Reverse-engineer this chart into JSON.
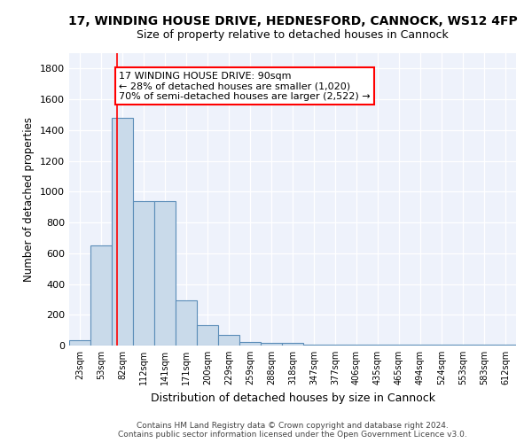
{
  "title": "17, WINDING HOUSE DRIVE, HEDNESFORD, CANNOCK, WS12 4FP",
  "subtitle": "Size of property relative to detached houses in Cannock",
  "xlabel": "Distribution of detached houses by size in Cannock",
  "ylabel": "Number of detached properties",
  "bin_labels": [
    "23sqm",
    "53sqm",
    "82sqm",
    "112sqm",
    "141sqm",
    "171sqm",
    "200sqm",
    "229sqm",
    "259sqm",
    "288sqm",
    "318sqm",
    "347sqm",
    "377sqm",
    "406sqm",
    "435sqm",
    "465sqm",
    "494sqm",
    "524sqm",
    "553sqm",
    "583sqm",
    "612sqm"
  ],
  "bar_heights": [
    35,
    650,
    1480,
    940,
    940,
    295,
    130,
    70,
    25,
    20,
    20,
    5,
    5,
    5,
    5,
    5,
    5,
    5,
    5,
    5,
    5
  ],
  "bar_color": "#c9daea",
  "bar_edge_color": "#5b8db8",
  "annotation_text": "17 WINDING HOUSE DRIVE: 90sqm\n← 28% of detached houses are smaller (1,020)\n70% of semi-detached houses are larger (2,522) →",
  "ylim": [
    0,
    1900
  ],
  "yticks": [
    0,
    200,
    400,
    600,
    800,
    1000,
    1200,
    1400,
    1600,
    1800
  ],
  "bg_color": "#eef2fb",
  "footer": "Contains HM Land Registry data © Crown copyright and database right 2024.\nContains public sector information licensed under the Open Government Licence v3.0."
}
